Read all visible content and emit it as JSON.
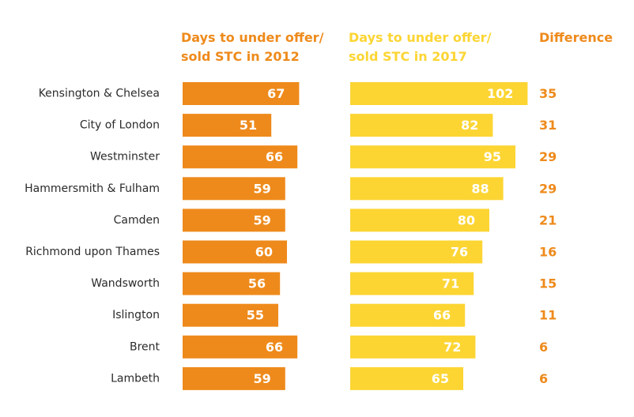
{
  "headers": {
    "col_2012": "Days to under offer/\nsold STC in 2012",
    "col_2017": "Days to under offer/\nsold STC in 2017",
    "difference": "Difference"
  },
  "colors": {
    "bar_2012": "#ee8a1b",
    "bar_2017": "#fcd533",
    "difference": "#ee8a1b"
  },
  "chart_data": {
    "type": "bar",
    "orientation": "horizontal",
    "categories": [
      "Kensington & Chelsea",
      "City of London",
      "Westminster",
      "Hammersmith & Fulham",
      "Camden",
      "Richmond upon Thames",
      "Wandsworth",
      "Islington",
      "Brent",
      "Lambeth"
    ],
    "series": [
      {
        "name": "Days to under offer/ sold STC in 2012",
        "values": [
          67,
          51,
          66,
          59,
          59,
          60,
          56,
          55,
          66,
          59
        ]
      },
      {
        "name": "Days to under offer/ sold STC in 2017",
        "values": [
          102,
          82,
          95,
          88,
          80,
          76,
          71,
          66,
          72,
          65
        ]
      }
    ],
    "difference": [
      35,
      31,
      29,
      29,
      21,
      16,
      15,
      11,
      6,
      6
    ],
    "title": "",
    "xlabel": "",
    "ylabel": "",
    "grid": false,
    "legend": "column headers"
  }
}
